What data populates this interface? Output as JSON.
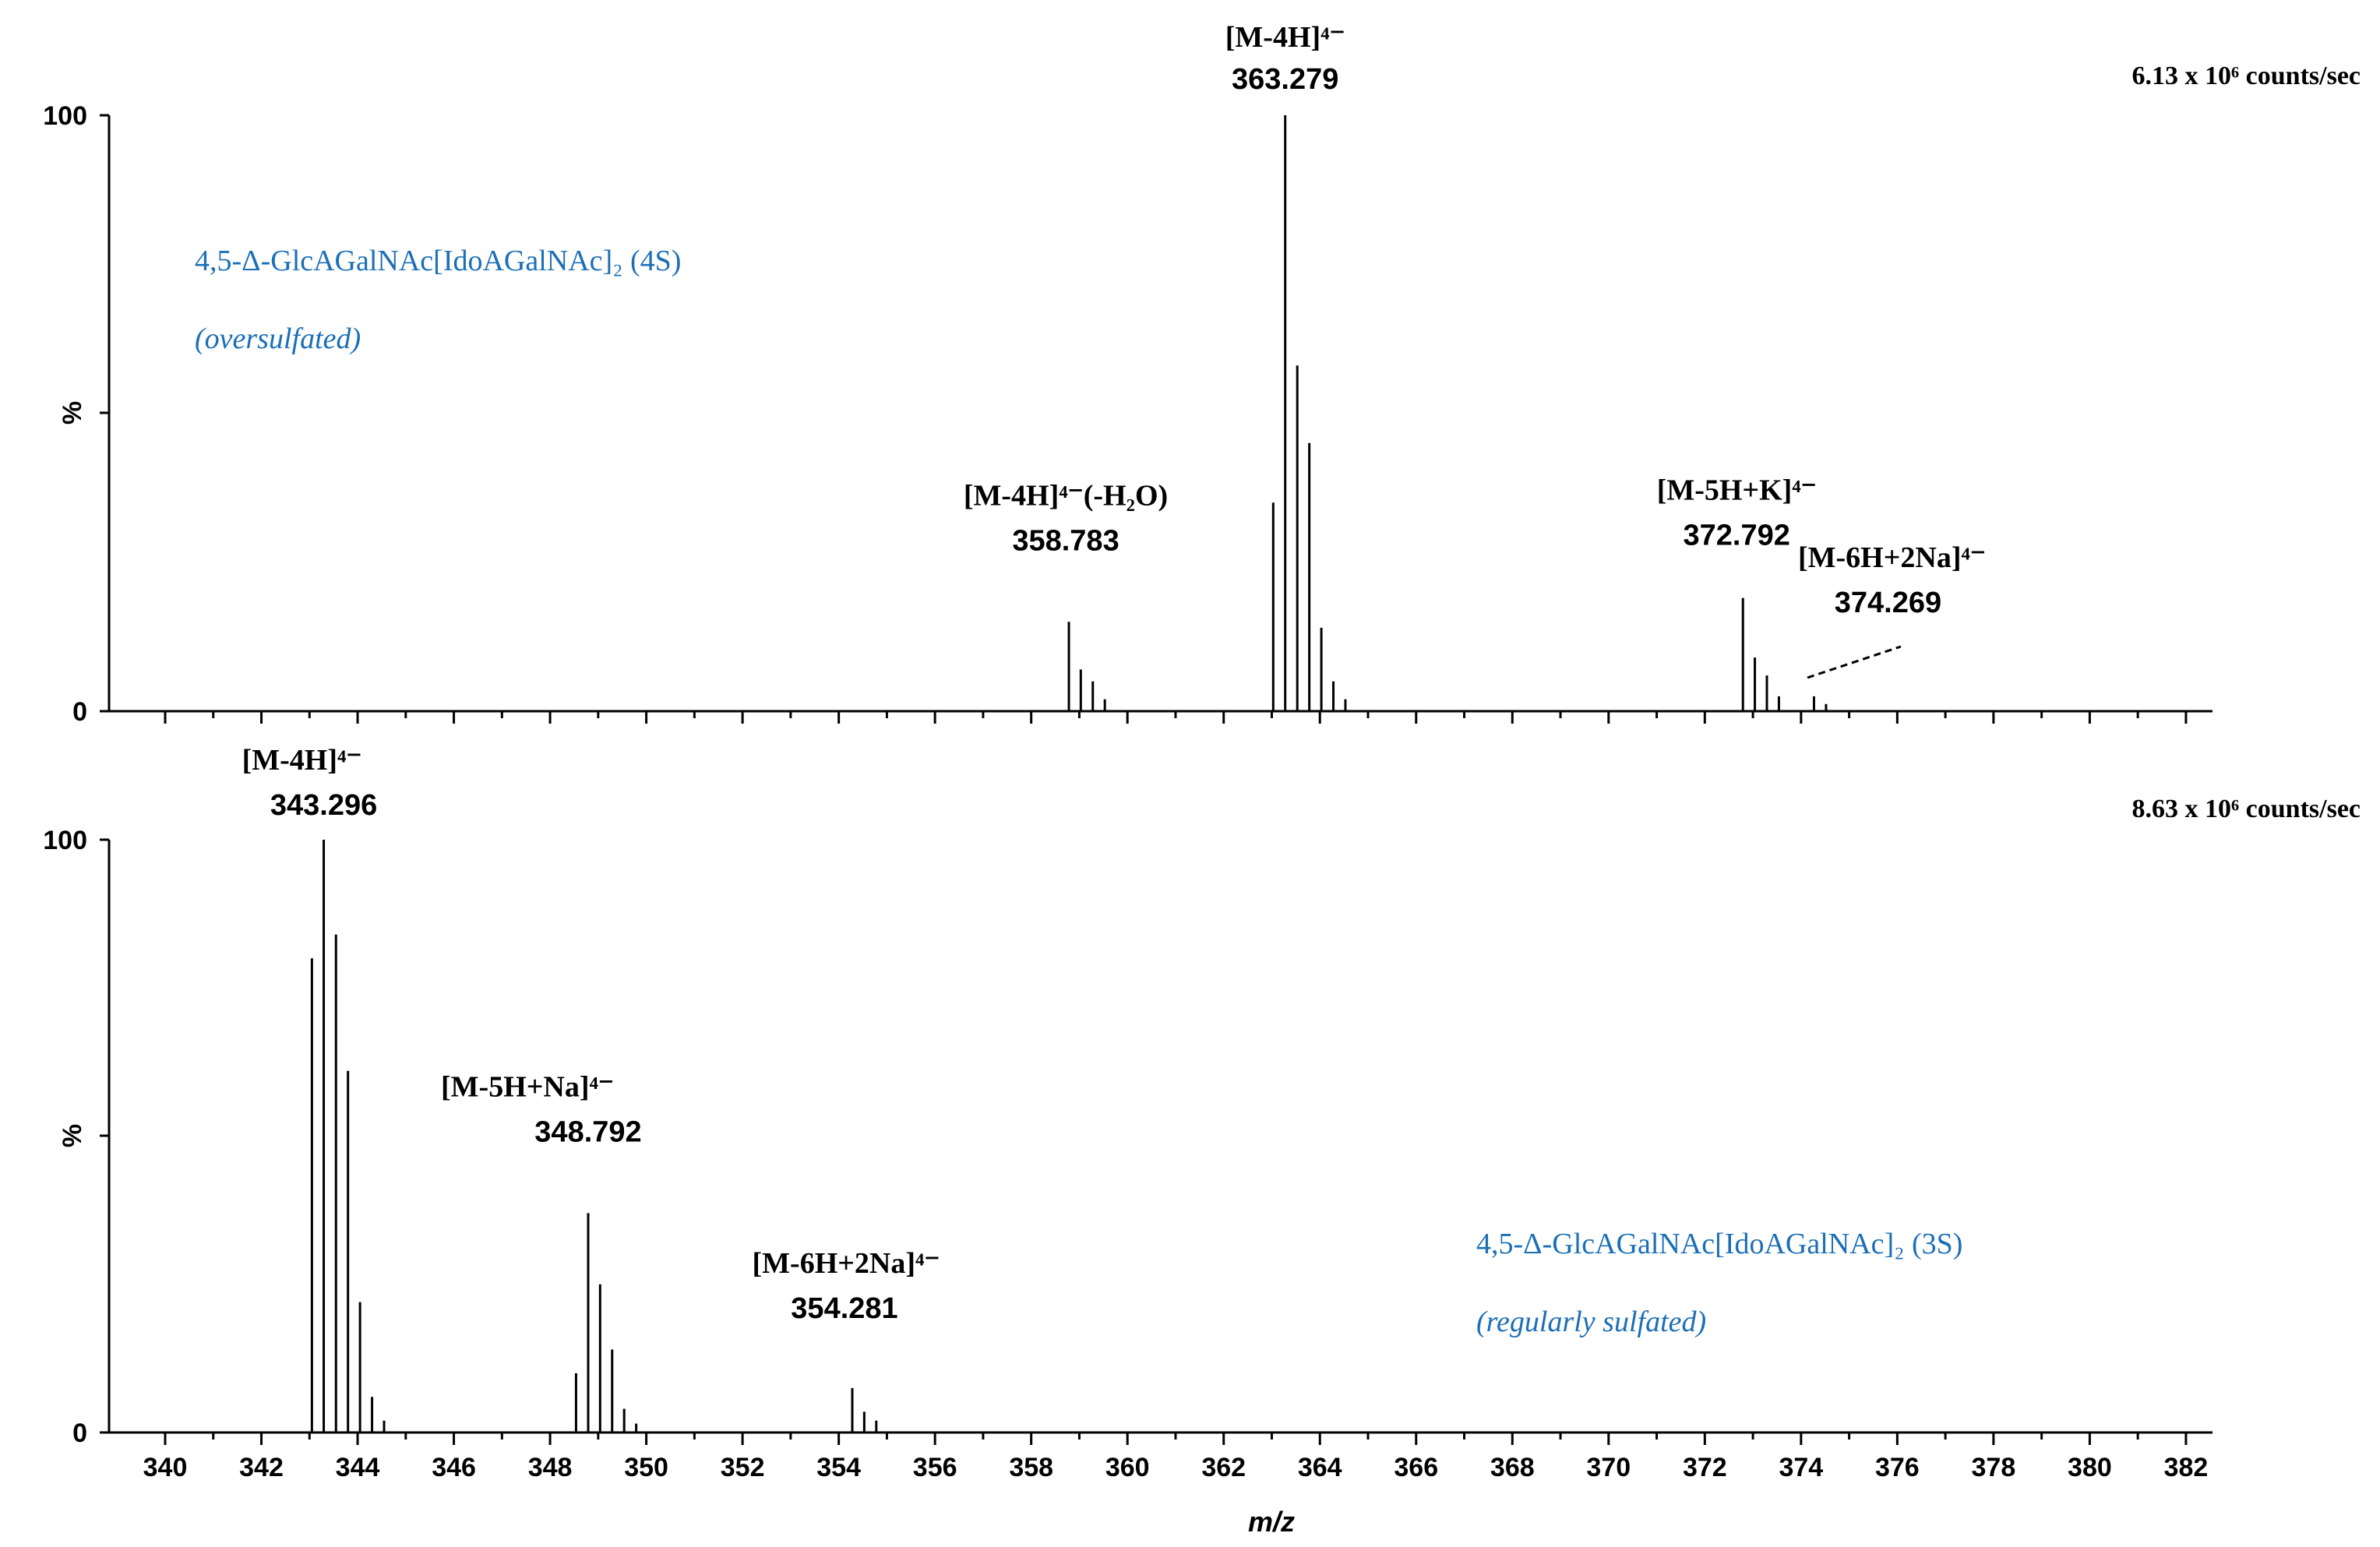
{
  "chart_data": [
    {
      "type": "line",
      "xlabel": "m/z",
      "ylabel": "%",
      "ylim": [
        0,
        100
      ],
      "xlim": [
        339.5,
        382.5
      ],
      "intensity": "6.13 x 10⁶ counts/sec",
      "compound": "4,5-Δ-GlcAGalNAc[IdoAGalNAc]₂ (4S)",
      "note": "(oversulfated)",
      "y_tick_labels": [
        "0",
        "%",
        "100"
      ],
      "peaks": [
        {
          "x": 358.783,
          "y": 15
        },
        {
          "x": 359.03,
          "y": 7
        },
        {
          "x": 359.28,
          "y": 5
        },
        {
          "x": 359.53,
          "y": 2
        },
        {
          "x": 363.03,
          "y": 35
        },
        {
          "x": 363.279,
          "y": 100
        },
        {
          "x": 363.53,
          "y": 58
        },
        {
          "x": 363.78,
          "y": 45
        },
        {
          "x": 364.03,
          "y": 14
        },
        {
          "x": 364.28,
          "y": 5
        },
        {
          "x": 364.53,
          "y": 2
        },
        {
          "x": 372.792,
          "y": 19
        },
        {
          "x": 373.04,
          "y": 9
        },
        {
          "x": 373.29,
          "y": 6
        },
        {
          "x": 373.54,
          "y": 2.5
        },
        {
          "x": 374.269,
          "y": 2.5
        },
        {
          "x": 374.52,
          "y": 1.2
        }
      ],
      "annotations": [
        {
          "ion": "[M-4H]⁴⁻",
          "mz": "363.279",
          "x": 363.279,
          "y": 100
        },
        {
          "ion": "[M-4H]⁴⁻(-H₂O)",
          "mz": "358.783",
          "x": 358.783,
          "y": 15
        },
        {
          "ion": "[M-5H+K]⁴⁻",
          "mz": "372.792",
          "x": 372.792,
          "y": 19
        },
        {
          "ion": "[M-6H+2Na]⁴⁻",
          "mz": "374.269",
          "x": 374.269,
          "y": 2.5
        }
      ]
    },
    {
      "type": "line",
      "xlabel": "m/z",
      "ylabel": "%",
      "ylim": [
        0,
        100
      ],
      "xlim": [
        339.5,
        382.5
      ],
      "intensity": "8.63 x 10⁶ counts/sec",
      "compound": "4,5-Δ-GlcAGalNAc[IdoAGalNAc]₂ (3S)",
      "note": "(regularly sulfated)",
      "y_tick_labels": [
        "0",
        "%",
        "100"
      ],
      "x_ticks": [
        340,
        342,
        344,
        346,
        348,
        350,
        352,
        354,
        356,
        358,
        360,
        362,
        364,
        366,
        368,
        370,
        372,
        374,
        376,
        378,
        380,
        382
      ],
      "peaks": [
        {
          "x": 343.05,
          "y": 80
        },
        {
          "x": 343.296,
          "y": 100
        },
        {
          "x": 343.55,
          "y": 84
        },
        {
          "x": 343.8,
          "y": 61
        },
        {
          "x": 344.05,
          "y": 22
        },
        {
          "x": 344.3,
          "y": 6
        },
        {
          "x": 344.55,
          "y": 2
        },
        {
          "x": 348.54,
          "y": 10
        },
        {
          "x": 348.792,
          "y": 37
        },
        {
          "x": 349.04,
          "y": 25
        },
        {
          "x": 349.29,
          "y": 14
        },
        {
          "x": 349.54,
          "y": 4
        },
        {
          "x": 349.79,
          "y": 1.5
        },
        {
          "x": 354.281,
          "y": 7.5
        },
        {
          "x": 354.53,
          "y": 3.5
        },
        {
          "x": 354.78,
          "y": 2
        }
      ],
      "annotations": [
        {
          "ion": "[M-4H]⁴⁻",
          "mz": "343.296",
          "x": 343.296,
          "y": 100
        },
        {
          "ion": "[M-5H+Na]⁴⁻",
          "mz": "348.792",
          "x": 348.792,
          "y": 37
        },
        {
          "ion": "[M-6H+2Na]⁴⁻",
          "mz": "354.281",
          "x": 354.281,
          "y": 7.5
        }
      ]
    }
  ]
}
